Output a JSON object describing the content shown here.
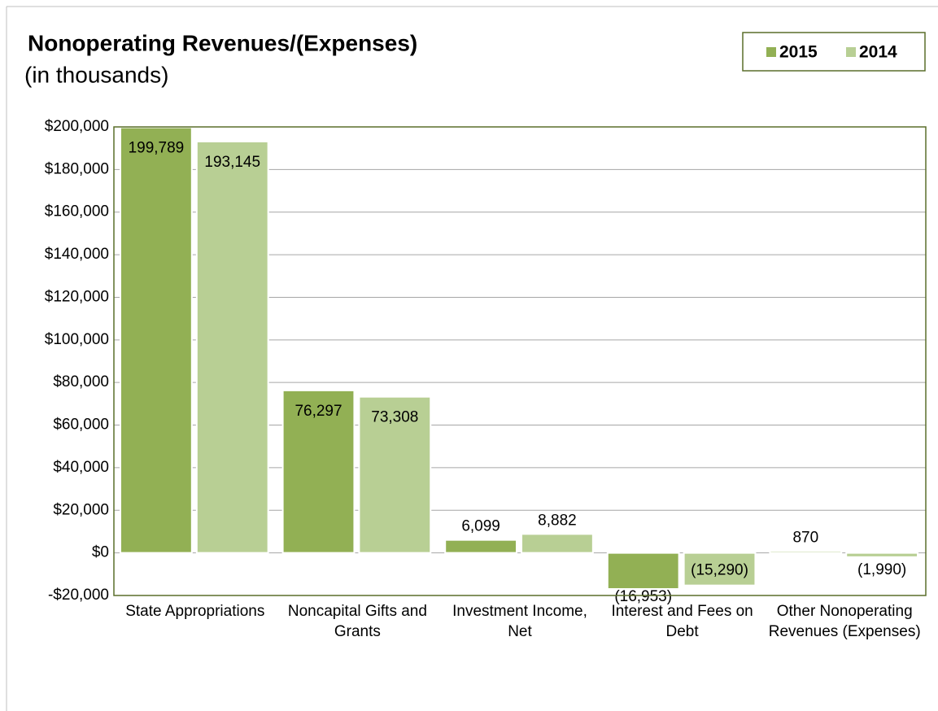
{
  "chart_data": {
    "type": "bar",
    "title": "Nonoperating Revenues/(Expenses)",
    "subtitle": "(in thousands)",
    "categories": [
      "State Appropriations",
      "Noncapital Gifts and Grants",
      "Investment Income, Net",
      "Interest and Fees on Debt",
      "Other Nonoperating Revenues (Expenses)"
    ],
    "series": [
      {
        "name": "2015",
        "color": "#92b054",
        "values": [
          199789,
          76297,
          6099,
          -16953,
          870
        ],
        "value_labels": [
          "199,789",
          "76,297",
          "6,099",
          "(16,953)",
          "870"
        ]
      },
      {
        "name": "2014",
        "color": "#b8cf94",
        "values": [
          193145,
          73308,
          8882,
          -15290,
          -1990
        ],
        "value_labels": [
          "193,145",
          "73,308",
          "8,882",
          "(15,290)",
          "(1,990)"
        ]
      }
    ],
    "ylim": [
      -20000,
      200000
    ],
    "yticks": [
      {
        "value": -20000,
        "label": "-$20,000"
      },
      {
        "value": 0,
        "label": "$0"
      },
      {
        "value": 20000,
        "label": "$20,000"
      },
      {
        "value": 40000,
        "label": "$40,000"
      },
      {
        "value": 60000,
        "label": "$60,000"
      },
      {
        "value": 80000,
        "label": "$80,000"
      },
      {
        "value": 100000,
        "label": "$100,000"
      },
      {
        "value": 120000,
        "label": "$120,000"
      },
      {
        "value": 140000,
        "label": "$140,000"
      },
      {
        "value": 160000,
        "label": "$160,000"
      },
      {
        "value": 180000,
        "label": "$180,000"
      },
      {
        "value": 200000,
        "label": "$200,000"
      }
    ],
    "grid": true,
    "legend": "top-right"
  }
}
